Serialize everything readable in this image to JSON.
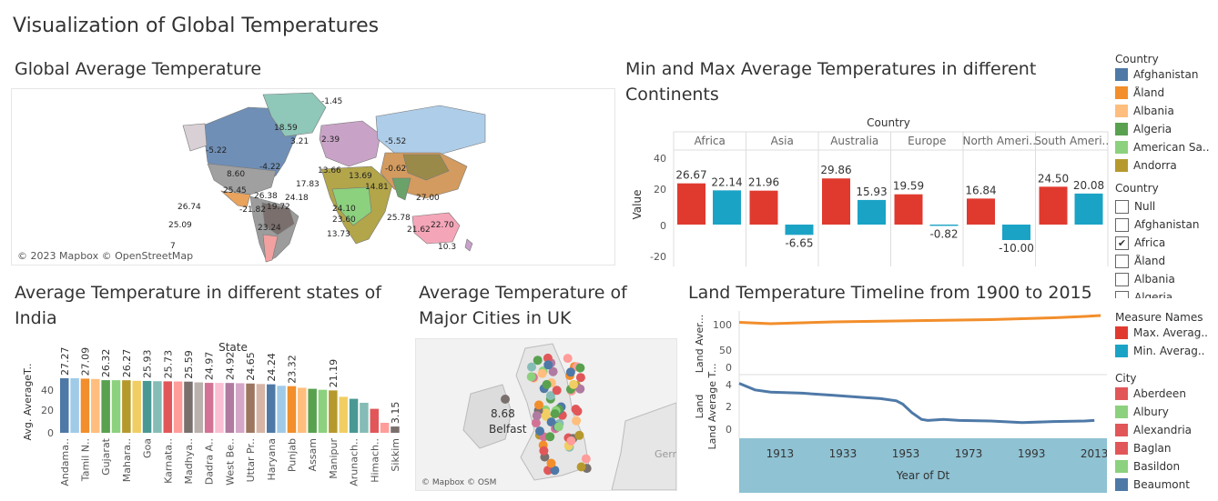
{
  "page_title": "Visualization of Global Temperatures",
  "map1": {
    "title": "Global Average Temperature",
    "attribution": "© 2023 Mapbox © OpenStreetMap",
    "labels": [
      "-5.22",
      "18.59",
      "-5.52",
      "8.60",
      "-4.22",
      "25.45",
      "26.74",
      "25.09",
      "-21.82",
      "26.38",
      "19.72",
      "23.24",
      "7",
      "17.83",
      "24.18",
      "14.81",
      "-0.62",
      "27.00",
      "25.78",
      "21.62",
      "22.70",
      "10.3",
      "23.60",
      "13.73",
      "24.10",
      "-1.45",
      "3.21",
      "13.66",
      "2.39",
      "13.69"
    ]
  },
  "minmax": {
    "title": "Min and Max Average Temperatures in different Continents",
    "col_header": "Country",
    "y_label": "Value",
    "y_ticks": [
      "40",
      "20",
      "0",
      "-20"
    ]
  },
  "india": {
    "title": "Average Temperature in different states of India",
    "col_header": "State",
    "y_label": "Avg. AverageT..",
    "y_ticks": [
      "40",
      "20",
      "0"
    ]
  },
  "uk": {
    "title": "Average Temperature of Major Cities in UK",
    "point_value": "8.68",
    "point_label": "Belfast",
    "attribution": "© Mapbox © OSM",
    "edge_label": "Gern"
  },
  "timeline": {
    "title": "Land Temperature Timeline from 1900 to 2015",
    "top_axis_label": "Land Aver...",
    "bottom_axis_label": "Land Average T...",
    "x_title": "Year of Dt",
    "top_ticks": [
      "100",
      "50",
      "0"
    ],
    "bottom_ticks": [
      "4",
      "2",
      "0"
    ],
    "x_ticks": [
      "1913",
      "1933",
      "1953",
      "1973",
      "1993",
      "2013"
    ]
  },
  "legend_country": {
    "title": "Country",
    "items": [
      {
        "label": "Afghanistan",
        "color": "#4e79a7"
      },
      {
        "label": "Åland",
        "color": "#f28e2b"
      },
      {
        "label": "Albania",
        "color": "#ffbe7d"
      },
      {
        "label": "Algeria",
        "color": "#59a14f"
      },
      {
        "label": "American Sa..",
        "color": "#8cd17d"
      },
      {
        "label": "Andorra",
        "color": "#b6992d"
      }
    ]
  },
  "filter_country": {
    "title": "Country",
    "items": [
      {
        "label": "Null",
        "checked": false
      },
      {
        "label": "Afghanistan",
        "checked": false
      },
      {
        "label": "Africa",
        "checked": true
      },
      {
        "label": "Åland",
        "checked": false
      },
      {
        "label": "Albania",
        "checked": false
      },
      {
        "label": "Algeria",
        "checked": false
      }
    ]
  },
  "legend_measure": {
    "title": "Measure Names",
    "items": [
      {
        "label": "Max. Averag..",
        "color": "#e03a2f"
      },
      {
        "label": "Min. Averag..",
        "color": "#1ba3c6"
      }
    ]
  },
  "legend_city": {
    "title": "City",
    "items": [
      {
        "label": "Aberdeen",
        "color": "#e15759"
      },
      {
        "label": "Albury",
        "color": "#8cd17d"
      },
      {
        "label": "Alexandria",
        "color": "#e15759"
      },
      {
        "label": "Baglan",
        "color": "#e15759"
      },
      {
        "label": "Basildon",
        "color": "#8cd17d"
      },
      {
        "label": "Beaumont",
        "color": "#4e79a7"
      }
    ]
  },
  "chart_data": [
    {
      "type": "bar",
      "title": "Min and Max Average Temperatures in different Continents",
      "xlabel": "Country",
      "ylabel": "Value",
      "ylim": [
        -20,
        40
      ],
      "categories": [
        "Africa",
        "Asia",
        "Australia",
        "Europe",
        "North Ameri..",
        "South Ameri.."
      ],
      "series": [
        {
          "name": "Max. Averag..",
          "color": "#e03a2f",
          "values": [
            26.67,
            21.96,
            29.86,
            19.59,
            16.84,
            24.5
          ],
          "labels": [
            "26.67",
            "21.96",
            "29.86",
            "19.59",
            "16.84",
            "24.50"
          ]
        },
        {
          "name": "Min. Averag..",
          "color": "#1ba3c6",
          "values": [
            22.14,
            -6.65,
            15.93,
            -0.82,
            -10.0,
            20.08
          ],
          "labels": [
            "22.14",
            "-6.65",
            "15.93",
            "-0.82",
            "-10.00",
            "20.08"
          ]
        }
      ]
    },
    {
      "type": "bar",
      "title": "Average Temperature in different states of India",
      "xlabel": "State",
      "ylabel": "Avg. AverageT..",
      "ylim": [
        0,
        40
      ],
      "categories": [
        "Andama..",
        "",
        "Tamil N..",
        "",
        "Gujarat",
        "",
        "Mahara..",
        "",
        "Goa",
        "",
        "Karnata..",
        "",
        "Madhya..",
        "",
        "Dadra A..",
        "",
        "West Be..",
        "",
        "Uttar Pr..",
        "",
        "Haryana",
        "",
        "Punjab",
        "",
        "Assam",
        "",
        "Manipur",
        "",
        "Arunach..",
        "",
        "Himach..",
        "",
        "Sikkim"
      ],
      "values": [
        27.27,
        27.27,
        27.09,
        26.9,
        26.32,
        26.3,
        26.27,
        26.0,
        25.93,
        25.8,
        25.73,
        25.65,
        25.59,
        25.2,
        24.97,
        24.95,
        24.92,
        24.8,
        24.65,
        24.4,
        24.24,
        23.5,
        23.32,
        22.5,
        22.0,
        21.5,
        21.19,
        18.0,
        17.0,
        15.0,
        12.0,
        5.0,
        3.15
      ],
      "labels": [
        "27.27",
        "",
        "27.09",
        "",
        "26.32",
        "",
        "26.27",
        "",
        "25.93",
        "",
        "25.73",
        "",
        "25.59",
        "",
        "24.97",
        "",
        "24.92",
        "",
        "24.65",
        "",
        "24.24",
        "",
        "23.32",
        "",
        "",
        "",
        "21.19",
        "",
        "",
        "",
        "",
        "",
        "3.15"
      ],
      "colors": [
        "#4e79a7",
        "#a0cbe8",
        "#f28e2b",
        "#ffbe7d",
        "#59a14f",
        "#8cd17d",
        "#b6992d",
        "#f1ce63",
        "#499894",
        "#86bcb6",
        "#e15759",
        "#ff9d9a",
        "#79706e",
        "#bab0ac",
        "#d37295",
        "#fabfd2",
        "#b07aa1",
        "#d4a6c8",
        "#9d7660",
        "#d7b5a6",
        "#4e79a7",
        "#a0cbe8",
        "#f28e2b",
        "#ffbe7d",
        "#59a14f",
        "#8cd17d",
        "#b6992d",
        "#f1ce63",
        "#499894",
        "#86bcb6",
        "#e15759",
        "#ff9d9a",
        "#79706e"
      ]
    },
    {
      "type": "line",
      "title": "Land Temperature Timeline from 1900 to 2015",
      "xlabel": "Year of Dt",
      "x_range": [
        1900,
        2015
      ],
      "panels": [
        {
          "ylabel": "Land Aver...",
          "ylim": [
            0,
            120
          ],
          "series": [
            {
              "name": "Max. Averag..",
              "color": "#f28e2b",
              "x": [
                1900,
                1910,
                1920,
                1930,
                1940,
                1950,
                1960,
                1970,
                1980,
                1990,
                2000,
                2010,
                2015
              ],
              "y": [
                103,
                100,
                102,
                104,
                105,
                106,
                107,
                108,
                109,
                111,
                113,
                116,
                118
              ]
            }
          ]
        },
        {
          "ylabel": "Land Average T...",
          "ylim": [
            0,
            4.5
          ],
          "series": [
            {
              "name": "Min. Averag..",
              "color": "#4e79a7",
              "x": [
                1900,
                1905,
                1910,
                1920,
                1930,
                1940,
                1945,
                1950,
                1952,
                1955,
                1958,
                1960,
                1965,
                1970,
                1980,
                1990,
                2000,
                2010,
                2013
              ],
              "y": [
                4.2,
                3.6,
                3.4,
                3.3,
                3.1,
                2.9,
                2.8,
                2.6,
                2.3,
                1.5,
                0.9,
                0.8,
                0.9,
                0.8,
                0.75,
                0.6,
                0.7,
                0.75,
                0.8
              ]
            }
          ]
        }
      ]
    }
  ]
}
